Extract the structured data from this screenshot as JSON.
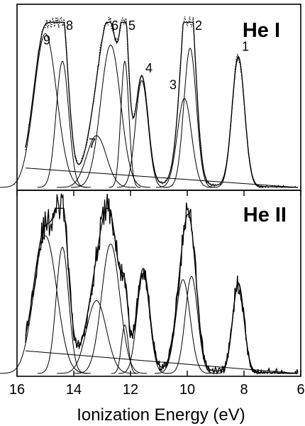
{
  "chart_data": [
    {
      "type": "line",
      "panel_label": "He I",
      "xlabel": "Ionization Energy (eV)",
      "xlim": [
        16,
        6
      ],
      "x_reversed": true,
      "x_ticks": [
        16,
        14,
        12,
        10,
        8,
        6
      ],
      "y_ticks_shown": false,
      "peak_labels": [
        {
          "label": "1",
          "x": 8.2
        },
        {
          "label": "2",
          "x": 9.85
        },
        {
          "label": "3",
          "x": 10.3
        },
        {
          "label": "4",
          "x": 11.6
        },
        {
          "label": "5",
          "x": 12.2
        },
        {
          "label": "6",
          "x": 12.8
        },
        {
          "label": "7",
          "x": 13.6
        },
        {
          "label": "8",
          "x": 14.4
        },
        {
          "label": "9",
          "x": 15.2
        }
      ],
      "baseline": {
        "x": [
          15.7,
          6.1
        ],
        "y": [
          0.12,
          0.0
        ]
      },
      "gaussian_components": [
        {
          "center": 8.2,
          "amplitude": 0.8,
          "width": 0.22
        },
        {
          "center": 9.9,
          "amplitude": 0.86,
          "width": 0.22
        },
        {
          "center": 10.1,
          "amplitude": 0.55,
          "width": 0.25
        },
        {
          "center": 11.6,
          "amplitude": 0.66,
          "width": 0.22
        },
        {
          "center": 12.2,
          "amplitude": 0.78,
          "width": 0.14
        },
        {
          "center": 12.7,
          "amplitude": 0.88,
          "width": 0.35
        },
        {
          "center": 13.2,
          "amplitude": 0.32,
          "width": 0.35
        },
        {
          "center": 14.4,
          "amplitude": 0.78,
          "width": 0.22
        },
        {
          "center": 15.0,
          "amplitude": 0.95,
          "width": 0.4
        }
      ],
      "series": [
        {
          "style": "experimental points (dotted)"
        },
        {
          "style": "fitted envelope (solid)"
        }
      ]
    },
    {
      "type": "line",
      "panel_label": "He II",
      "xlabel": "Ionization Energy (eV)",
      "xlim": [
        16,
        6
      ],
      "x_reversed": true,
      "x_ticks": [
        16,
        14,
        12,
        10,
        8,
        6
      ],
      "y_ticks_shown": false,
      "baseline": {
        "x": [
          15.7,
          6.1
        ],
        "y": [
          0.14,
          0.0
        ]
      },
      "gaussian_components": [
        {
          "center": 8.2,
          "amplitude": 0.55,
          "width": 0.2
        },
        {
          "center": 9.85,
          "amplitude": 0.6,
          "width": 0.22
        },
        {
          "center": 10.15,
          "amplitude": 0.58,
          "width": 0.25
        },
        {
          "center": 11.55,
          "amplitude": 0.62,
          "width": 0.22
        },
        {
          "center": 12.2,
          "amplitude": 0.3,
          "width": 0.12
        },
        {
          "center": 12.7,
          "amplitude": 0.8,
          "width": 0.32
        },
        {
          "center": 13.2,
          "amplitude": 0.45,
          "width": 0.35
        },
        {
          "center": 14.4,
          "amplitude": 0.78,
          "width": 0.22
        },
        {
          "center": 15.0,
          "amplitude": 0.85,
          "width": 0.4
        }
      ],
      "series": [
        {
          "style": "experimental spectrum (noisy)"
        },
        {
          "style": "fitted envelope (solid)"
        }
      ]
    }
  ]
}
